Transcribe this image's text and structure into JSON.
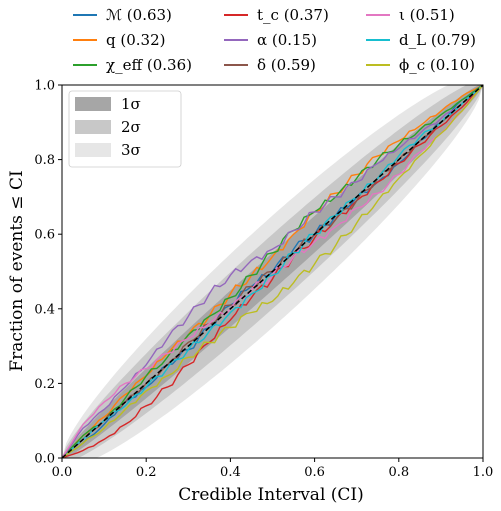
{
  "chart_data": {
    "type": "line",
    "title": "",
    "xlabel": "Credible Interval (CI)",
    "ylabel": "Fraction of events ≤ CI",
    "xlim": [
      0.0,
      1.0
    ],
    "ylim": [
      0.0,
      1.0
    ],
    "xticks": [
      "0.0",
      "0.2",
      "0.4",
      "0.6",
      "0.8",
      "1.0"
    ],
    "yticks": [
      "0.0",
      "0.2",
      "0.4",
      "0.6",
      "0.8",
      "1.0"
    ],
    "grid": false,
    "legend_position": "top (above plot), 3 columns",
    "bands": [
      {
        "label": "1σ",
        "color": "#a6a6a6"
      },
      {
        "label": "2σ",
        "color": "#c8c8c8"
      },
      {
        "label": "3σ",
        "color": "#e6e6e6"
      }
    ],
    "bands_legend_position": "top-left",
    "diagonal": {
      "style": "dashed",
      "color": "#000000"
    },
    "series": [
      {
        "name": "ℳ (0.63)",
        "color": "#1f77b4",
        "x": [
          0,
          0.05,
          0.1,
          0.15,
          0.2,
          0.25,
          0.3,
          0.35,
          0.4,
          0.45,
          0.5,
          0.55,
          0.6,
          0.65,
          0.7,
          0.75,
          0.8,
          0.85,
          0.9,
          0.95,
          1.0
        ],
        "y": [
          0,
          0.04,
          0.09,
          0.15,
          0.19,
          0.25,
          0.29,
          0.35,
          0.41,
          0.46,
          0.5,
          0.56,
          0.6,
          0.65,
          0.7,
          0.74,
          0.79,
          0.85,
          0.9,
          0.96,
          1.0
        ]
      },
      {
        "name": "q (0.32)",
        "color": "#ff7f0e",
        "x": [
          0,
          0.05,
          0.1,
          0.15,
          0.2,
          0.25,
          0.3,
          0.35,
          0.4,
          0.45,
          0.5,
          0.55,
          0.6,
          0.65,
          0.7,
          0.75,
          0.8,
          0.85,
          0.9,
          0.95,
          1.0
        ],
        "y": [
          0,
          0.06,
          0.11,
          0.17,
          0.22,
          0.28,
          0.33,
          0.38,
          0.44,
          0.49,
          0.54,
          0.6,
          0.66,
          0.71,
          0.76,
          0.81,
          0.85,
          0.89,
          0.93,
          0.97,
          1.0
        ]
      },
      {
        "name": "χ_eff (0.36)",
        "color": "#2ca02c",
        "x": [
          0,
          0.05,
          0.1,
          0.15,
          0.2,
          0.25,
          0.3,
          0.35,
          0.4,
          0.45,
          0.5,
          0.55,
          0.6,
          0.65,
          0.7,
          0.75,
          0.8,
          0.85,
          0.9,
          0.95,
          1.0
        ],
        "y": [
          0,
          0.06,
          0.1,
          0.16,
          0.22,
          0.27,
          0.33,
          0.38,
          0.43,
          0.49,
          0.55,
          0.61,
          0.66,
          0.7,
          0.75,
          0.8,
          0.84,
          0.88,
          0.92,
          0.96,
          1.0
        ]
      },
      {
        "name": "t_c (0.37)",
        "color": "#d62728",
        "x": [
          0,
          0.05,
          0.1,
          0.15,
          0.2,
          0.25,
          0.3,
          0.35,
          0.4,
          0.45,
          0.5,
          0.55,
          0.6,
          0.65,
          0.7,
          0.75,
          0.8,
          0.85,
          0.9,
          0.95,
          1.0
        ],
        "y": [
          0,
          0.02,
          0.05,
          0.09,
          0.14,
          0.19,
          0.25,
          0.31,
          0.37,
          0.43,
          0.48,
          0.54,
          0.59,
          0.64,
          0.69,
          0.74,
          0.79,
          0.84,
          0.89,
          0.94,
          1.0
        ]
      },
      {
        "name": "α (0.15)",
        "color": "#9467bd",
        "x": [
          0,
          0.05,
          0.1,
          0.15,
          0.2,
          0.25,
          0.3,
          0.35,
          0.4,
          0.45,
          0.5,
          0.55,
          0.6,
          0.65,
          0.7,
          0.75,
          0.8,
          0.85,
          0.9,
          0.95,
          1.0
        ],
        "y": [
          0,
          0.08,
          0.13,
          0.19,
          0.25,
          0.32,
          0.38,
          0.44,
          0.49,
          0.53,
          0.56,
          0.61,
          0.66,
          0.7,
          0.74,
          0.79,
          0.83,
          0.87,
          0.91,
          0.95,
          1.0
        ]
      },
      {
        "name": "δ (0.59)",
        "color": "#8c564b",
        "x": [
          0,
          0.05,
          0.1,
          0.15,
          0.2,
          0.25,
          0.3,
          0.35,
          0.4,
          0.45,
          0.5,
          0.55,
          0.6,
          0.65,
          0.7,
          0.75,
          0.8,
          0.85,
          0.9,
          0.95,
          1.0
        ],
        "y": [
          0,
          0.05,
          0.1,
          0.15,
          0.2,
          0.25,
          0.31,
          0.36,
          0.41,
          0.46,
          0.5,
          0.55,
          0.6,
          0.64,
          0.69,
          0.75,
          0.8,
          0.85,
          0.9,
          0.95,
          1.0
        ]
      },
      {
        "name": "ι (0.51)",
        "color": "#e377c2",
        "x": [
          0,
          0.05,
          0.1,
          0.15,
          0.2,
          0.25,
          0.3,
          0.35,
          0.4,
          0.45,
          0.5,
          0.55,
          0.6,
          0.65,
          0.7,
          0.75,
          0.8,
          0.85,
          0.9,
          0.95,
          1.0
        ],
        "y": [
          0,
          0.09,
          0.15,
          0.2,
          0.24,
          0.28,
          0.32,
          0.36,
          0.4,
          0.45,
          0.49,
          0.54,
          0.58,
          0.62,
          0.67,
          0.71,
          0.76,
          0.82,
          0.87,
          0.93,
          1.0
        ]
      },
      {
        "name": "d_L (0.79)",
        "color": "#17becf",
        "x": [
          0,
          0.05,
          0.1,
          0.15,
          0.2,
          0.25,
          0.3,
          0.35,
          0.4,
          0.45,
          0.5,
          0.55,
          0.6,
          0.65,
          0.7,
          0.75,
          0.8,
          0.85,
          0.9,
          0.95,
          1.0
        ],
        "y": [
          0,
          0.05,
          0.1,
          0.14,
          0.19,
          0.24,
          0.29,
          0.34,
          0.39,
          0.44,
          0.49,
          0.55,
          0.6,
          0.65,
          0.7,
          0.75,
          0.81,
          0.86,
          0.9,
          0.95,
          1.0
        ]
      },
      {
        "name": "ϕ_c (0.10)",
        "color": "#bcbd22",
        "x": [
          0,
          0.05,
          0.1,
          0.15,
          0.2,
          0.25,
          0.3,
          0.35,
          0.4,
          0.45,
          0.5,
          0.55,
          0.6,
          0.65,
          0.7,
          0.75,
          0.8,
          0.85,
          0.9,
          0.95,
          1.0
        ],
        "y": [
          0,
          0.04,
          0.08,
          0.13,
          0.18,
          0.22,
          0.27,
          0.31,
          0.35,
          0.39,
          0.42,
          0.47,
          0.52,
          0.57,
          0.63,
          0.69,
          0.75,
          0.81,
          0.87,
          0.93,
          1.0
        ]
      }
    ]
  }
}
